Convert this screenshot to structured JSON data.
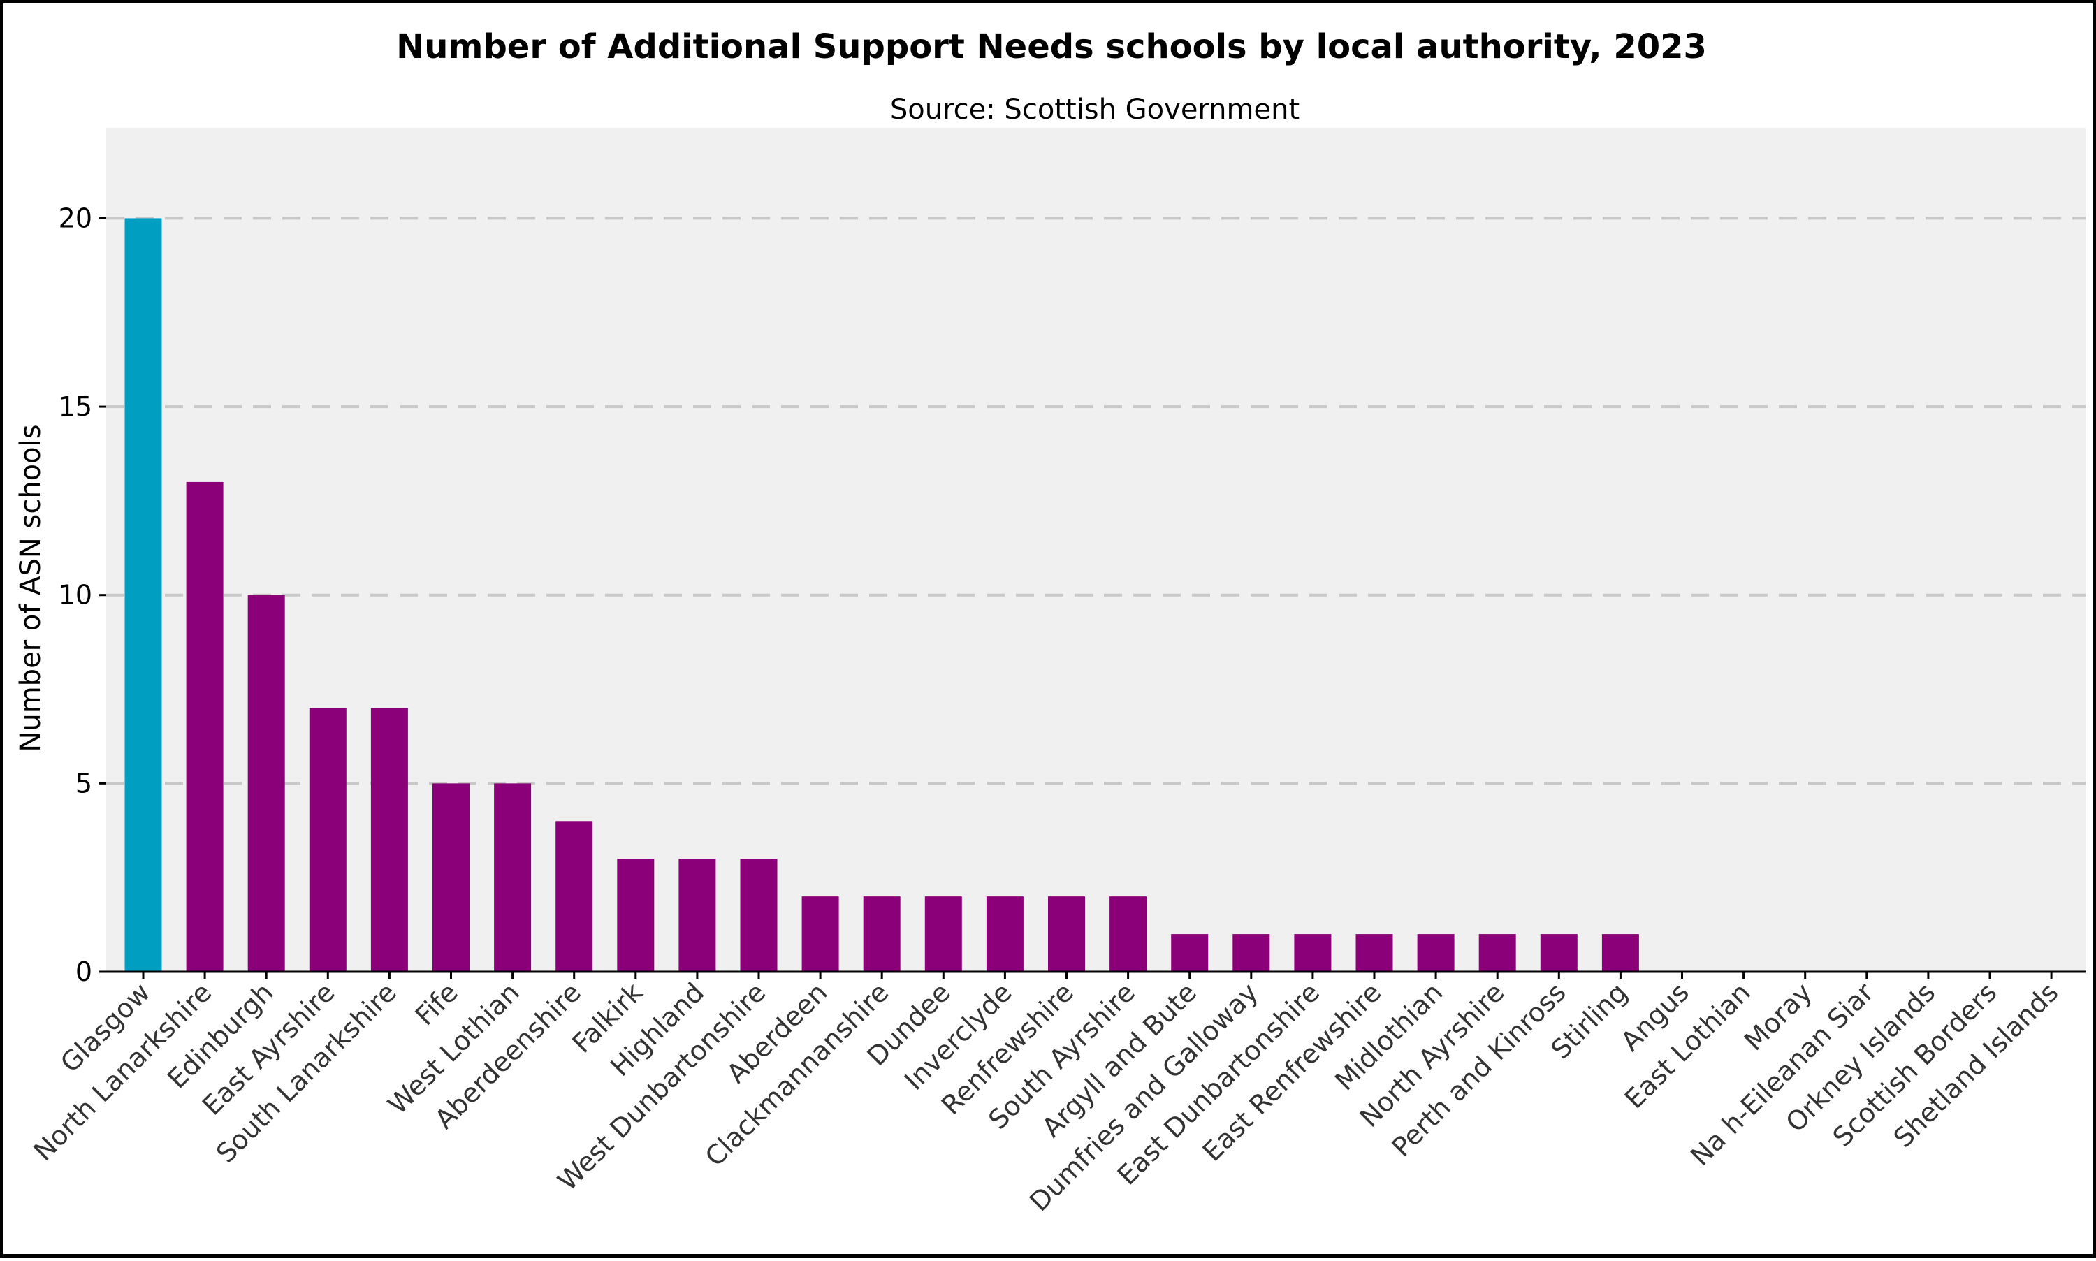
{
  "chart_data": {
    "type": "bar",
    "title": "Number of Additional Support Needs schools by local authority, 2023",
    "subtitle": "Source: Scottish Government",
    "xlabel": "",
    "ylabel": "Number of ASN schools",
    "ylim": [
      0,
      22.4
    ],
    "yticks": [
      0,
      5,
      10,
      15,
      20
    ],
    "grid": true,
    "colors": {
      "highlight": "#009fc2",
      "default": "#8b0079",
      "plot_bg": "#f0f0f0"
    },
    "highlight_category": "Glasgow",
    "categories": [
      "Glasgow",
      "North Lanarkshire",
      "Edinburgh",
      "East Ayrshire",
      "South Lanarkshire",
      "Fife",
      "West Lothian",
      "Aberdeenshire",
      "Falkirk",
      "Highland",
      "West Dunbartonshire",
      "Aberdeen",
      "Clackmannanshire",
      "Dundee",
      "Inverclyde",
      "Renfrewshire",
      "South Ayrshire",
      "Argyll and Bute",
      "Dumfries and Galloway",
      "East Dunbartonshire",
      "East Renfrewshire",
      "Midlothian",
      "North Ayrshire",
      "Perth and Kinross",
      "Stirling",
      "Angus",
      "East Lothian",
      "Moray",
      "Na h-Eileanan Siar",
      "Orkney Islands",
      "Scottish Borders",
      "Shetland Islands"
    ],
    "values": [
      20,
      13,
      10,
      7,
      7,
      5,
      5,
      4,
      3,
      3,
      3,
      2,
      2,
      2,
      2,
      2,
      2,
      1,
      1,
      1,
      1,
      1,
      1,
      1,
      1,
      0,
      0,
      0,
      0,
      0,
      0,
      0
    ]
  }
}
